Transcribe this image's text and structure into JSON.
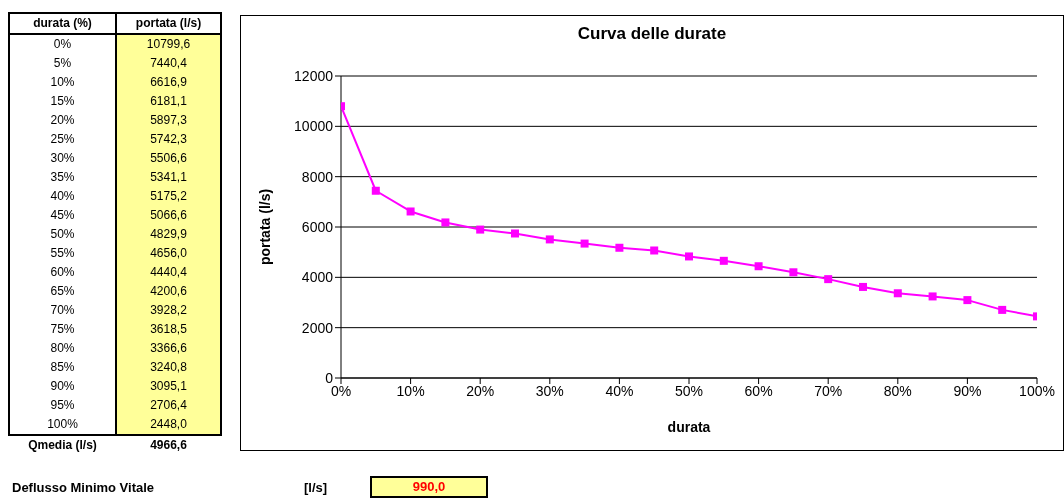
{
  "chart_data": {
    "type": "line",
    "title": "Curva delle durate",
    "xlabel": "durata",
    "ylabel": "portata (l/s)",
    "x": [
      0,
      5,
      10,
      15,
      20,
      25,
      30,
      35,
      40,
      45,
      50,
      55,
      60,
      65,
      70,
      75,
      80,
      85,
      90,
      95,
      100
    ],
    "series": [
      {
        "color": "#ff00ff",
        "values": [
          10799.6,
          7440.4,
          6616.9,
          6181.1,
          5897.3,
          5742.3,
          5506.6,
          5341.1,
          5175.2,
          5066.6,
          4829.9,
          4656.0,
          4440.4,
          4200.6,
          3928.2,
          3618.5,
          3366.6,
          3240.8,
          3095.1,
          2706.4,
          2448.0
        ]
      }
    ],
    "xlim": [
      0,
      100
    ],
    "xticks": [
      {
        "value": 0,
        "label": "0%"
      },
      {
        "value": 10,
        "label": "10%"
      },
      {
        "value": 20,
        "label": "20%"
      },
      {
        "value": 30,
        "label": "30%"
      },
      {
        "value": 40,
        "label": "40%"
      },
      {
        "value": 50,
        "label": "50%"
      },
      {
        "value": 60,
        "label": "60%"
      },
      {
        "value": 70,
        "label": "70%"
      },
      {
        "value": 80,
        "label": "80%"
      },
      {
        "value": 90,
        "label": "90%"
      },
      {
        "value": 100,
        "label": "100%"
      }
    ],
    "ylim": [
      0,
      12000
    ],
    "yticks": [
      0,
      2000,
      4000,
      6000,
      8000,
      10000,
      12000
    ],
    "grid": "y",
    "marker": "square",
    "line_style": "solid",
    "annotations": [
      "durata (%)",
      "portata (l/s)",
      "0%",
      "5%",
      "10%",
      "15%",
      "20%",
      "25%",
      "30%",
      "35%",
      "40%",
      "45%",
      "50%",
      "55%",
      "60%",
      "65%",
      "70%",
      "75%",
      "80%",
      "85%",
      "90%",
      "95%",
      "100%",
      "10799,6",
      "7440,4",
      "6616,9",
      "6181,1",
      "5897,3",
      "5742,3",
      "5506,6",
      "5341,1",
      "5175,2",
      "5066,6",
      "4829,9",
      "4656,0",
      "4440,4",
      "4200,6",
      "3928,2",
      "3618,5",
      "3366,6",
      "3240,8",
      "3095,1",
      "2706,4",
      "2448,0",
      "Qmedia (l/s)",
      "4966,6",
      "Deflusso Minimo Vitale",
      "[l/s]",
      "990,0"
    ]
  }
}
